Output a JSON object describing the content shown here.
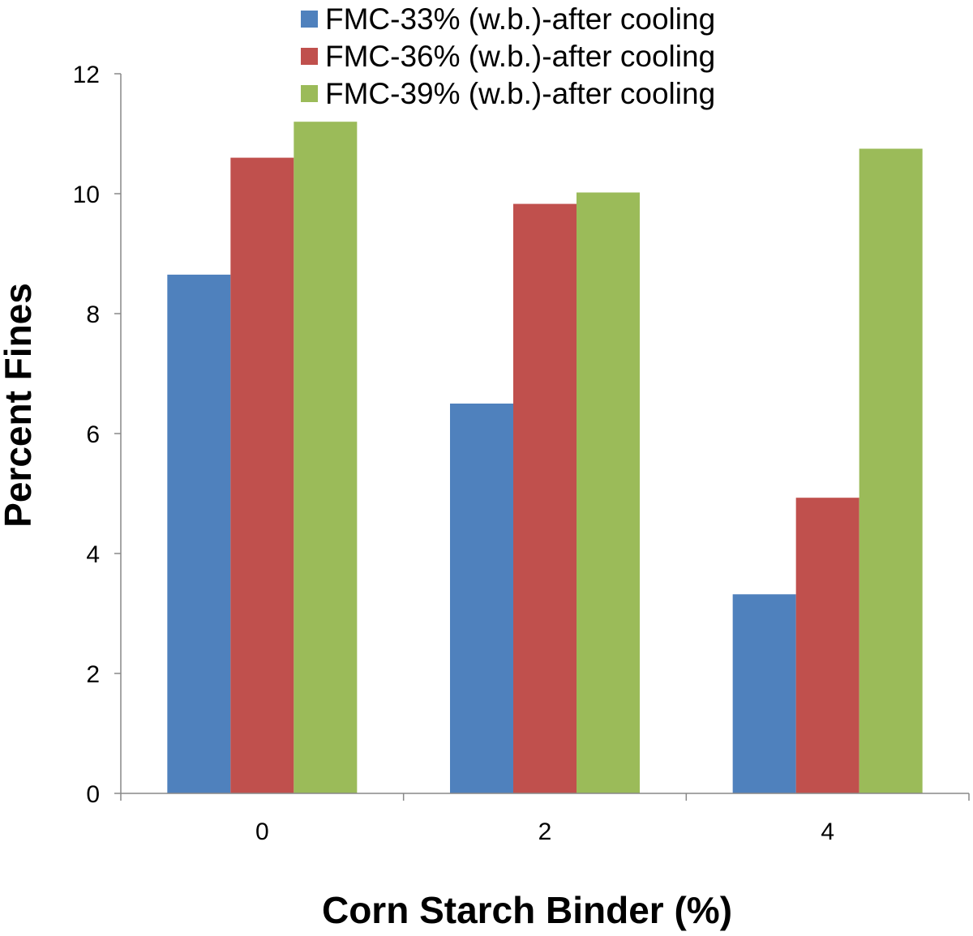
{
  "chart_data": {
    "type": "bar",
    "title": "",
    "xlabel": "Corn Starch Binder (%)",
    "ylabel": "Percent  Fines",
    "categories": [
      "0",
      "2",
      "4"
    ],
    "ylim": [
      0,
      12
    ],
    "yticks": [
      "0",
      "2",
      "4",
      "6",
      "8",
      "10",
      "12"
    ],
    "grid": false,
    "legend_position": "top-center",
    "series": [
      {
        "name": "FMC-33% (w.b.)-after cooling",
        "color": "#4f81bd",
        "values": [
          8.65,
          6.5,
          3.32
        ]
      },
      {
        "name": "FMC-36% (w.b.)-after cooling",
        "color": "#c0504d",
        "values": [
          10.6,
          9.83,
          4.93
        ]
      },
      {
        "name": "FMC-39% (w.b.)-after cooling",
        "color": "#9bbb59",
        "values": [
          11.2,
          10.02,
          10.75
        ]
      }
    ]
  }
}
